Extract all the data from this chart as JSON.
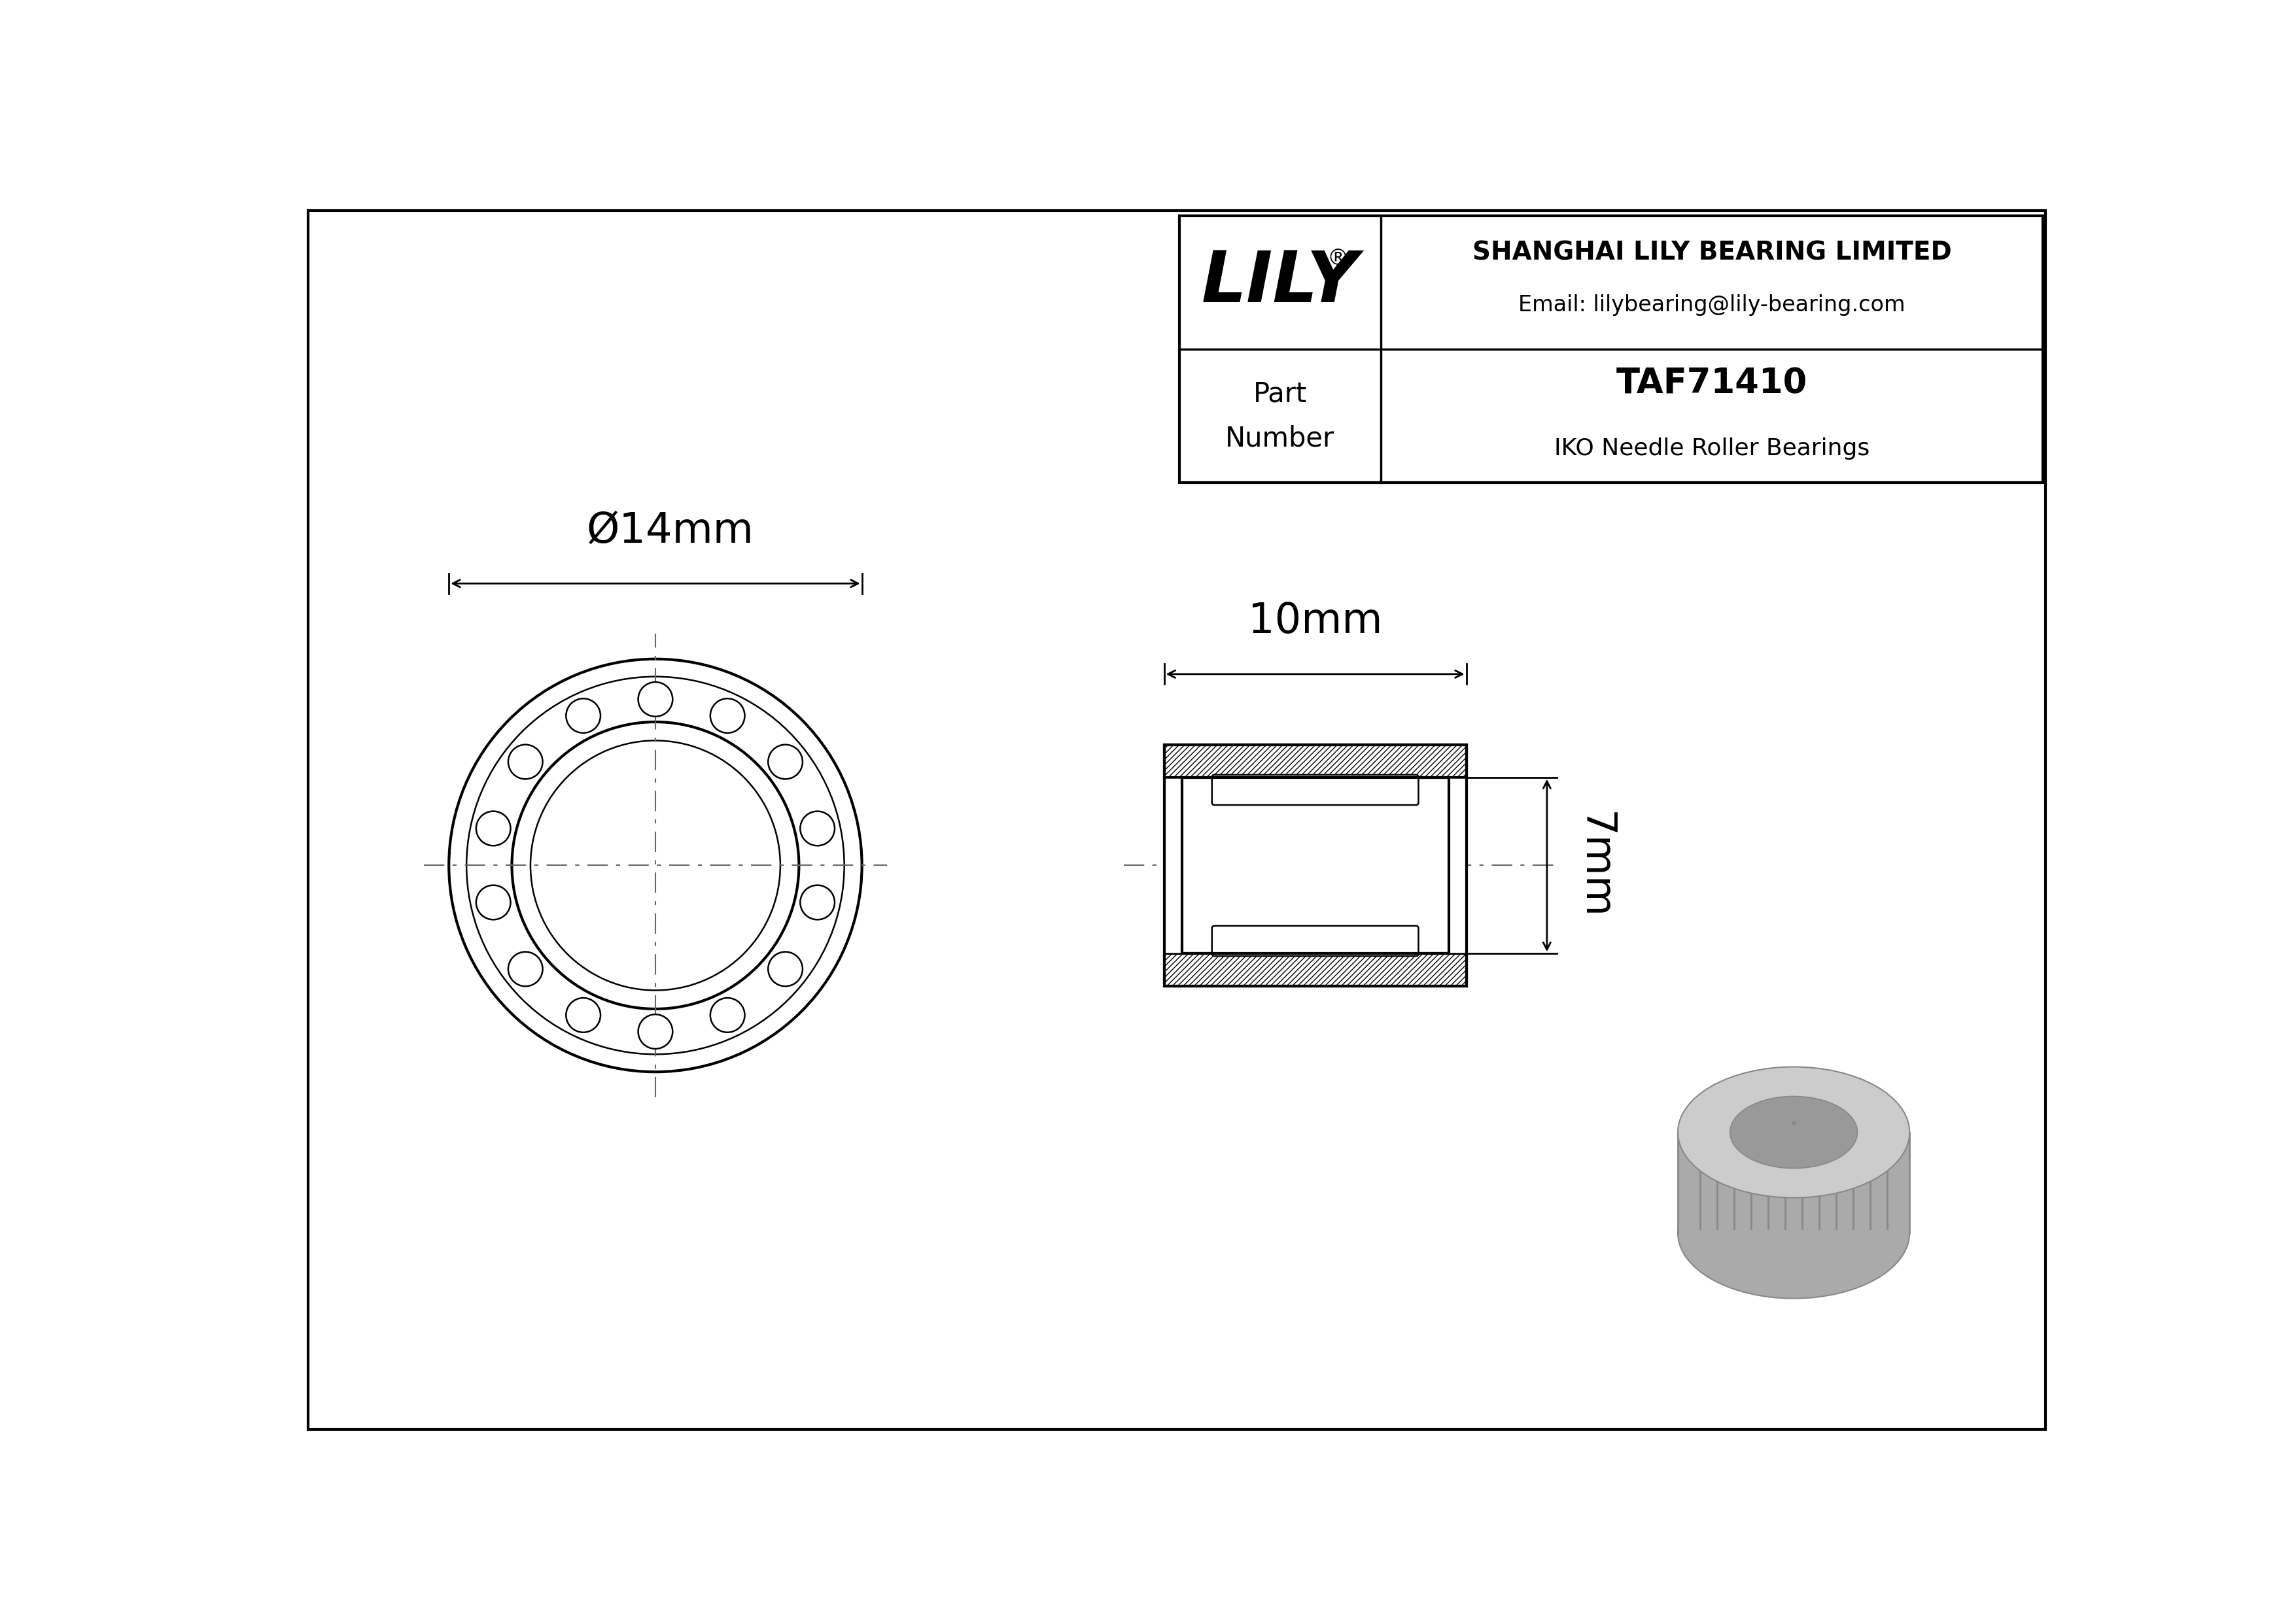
{
  "bg_color": "#ffffff",
  "border_color": "#000000",
  "line_color": "#000000",
  "dim_color": "#000000",
  "center_line_color": "#666666",
  "title_company": "SHANGHAI LILY BEARING LIMITED",
  "title_email": "Email: lilybearing@lily-bearing.com",
  "part_label": "Part\nNumber",
  "part_number": "TAF71410",
  "part_type": "IKO Needle Roller Bearings",
  "logo_text": "LILY",
  "dim_diameter": "Ø14mm",
  "dim_width": "10mm",
  "dim_height": "7mm",
  "n_rollers": 14,
  "roller_gray": "#aaaaaa",
  "roller_dark": "#888888",
  "roller_inner_gray": "#999999"
}
